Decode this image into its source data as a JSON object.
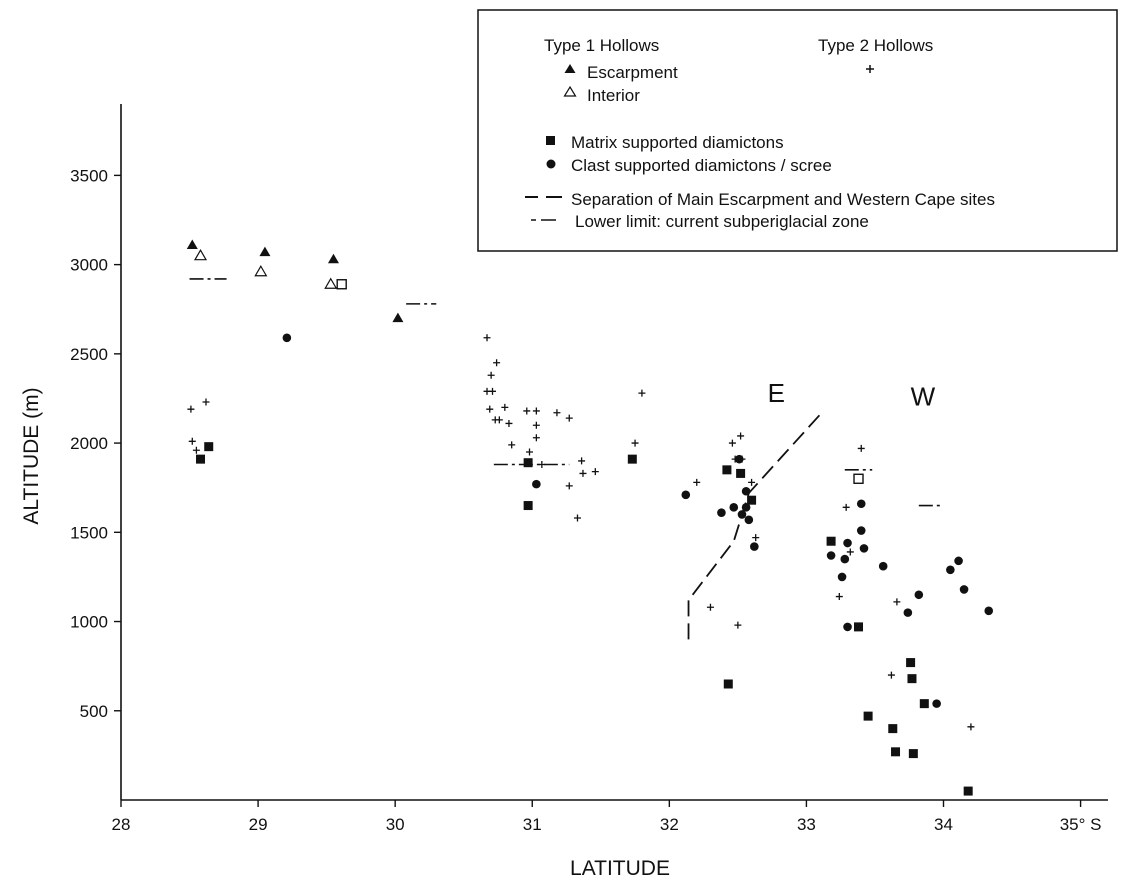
{
  "chart_data": {
    "type": "scatter",
    "title": "",
    "xlabel": "LATITUDE",
    "ylabel": "ALTITUDE (m)",
    "xlim": [
      28,
      35.2
    ],
    "ylim": [
      0,
      3900
    ],
    "x_tick_labels": [
      "28",
      "29",
      "30",
      "31",
      "32",
      "33",
      "34",
      "35° S"
    ],
    "x_tick_values": [
      28,
      29,
      30,
      31,
      32,
      33,
      34,
      35
    ],
    "y_tick_labels": [
      "500",
      "1000",
      "1500",
      "2000",
      "2500",
      "3000",
      "3500"
    ],
    "y_tick_values": [
      500,
      1000,
      1500,
      2000,
      2500,
      3000,
      3500
    ],
    "grid": false,
    "legend_placement": "top-right",
    "legend": {
      "type1_heading": "Type 1 Hollows",
      "type2_heading": "Type 2 Hollows",
      "escarpment": "Escarpment",
      "interior": "Interior",
      "matrix": "Matrix supported diamictons",
      "clast": "Clast supported diamictons / scree",
      "separation": "Separation of Main Escarpment and Western Cape sites",
      "lower_limit": "Lower limit: current subperiglacial zone"
    },
    "annotations": [
      {
        "text": "E",
        "x": 32.78,
        "y": 2230
      },
      {
        "text": "W",
        "x": 33.85,
        "y": 2210
      }
    ],
    "series": [
      {
        "name": "Escarpment",
        "marker": "filled-triangle",
        "points": [
          [
            28.52,
            3110
          ],
          [
            29.05,
            3070
          ],
          [
            29.55,
            3030
          ],
          [
            30.02,
            2700
          ]
        ]
      },
      {
        "name": "Interior",
        "marker": "open-triangle",
        "points": [
          [
            28.58,
            3050
          ],
          [
            29.02,
            2960
          ],
          [
            29.53,
            2890
          ]
        ]
      },
      {
        "name": "Matrix supported diamictons",
        "marker": "filled-square",
        "points": [
          [
            28.58,
            1910
          ],
          [
            28.64,
            1980
          ],
          [
            30.97,
            1890
          ],
          [
            30.97,
            1650
          ],
          [
            31.73,
            1910
          ],
          [
            32.42,
            1850
          ],
          [
            32.52,
            1830
          ],
          [
            32.6,
            1680
          ],
          [
            32.43,
            650
          ],
          [
            33.18,
            1450
          ],
          [
            33.38,
            970
          ],
          [
            33.45,
            470
          ],
          [
            33.63,
            400
          ],
          [
            33.65,
            270
          ],
          [
            33.76,
            770
          ],
          [
            33.77,
            680
          ],
          [
            33.78,
            260
          ],
          [
            33.86,
            540
          ],
          [
            34.18,
            50
          ]
        ]
      },
      {
        "name": "Matrix supported diamictons (open)",
        "marker": "open-square",
        "points": [
          [
            29.61,
            2890
          ],
          [
            33.38,
            1800
          ]
        ]
      },
      {
        "name": "Clast supported diamictons / scree",
        "marker": "filled-circle",
        "points": [
          [
            29.21,
            2590
          ],
          [
            31.03,
            1770
          ],
          [
            32.12,
            1710
          ],
          [
            32.38,
            1610
          ],
          [
            32.47,
            1640
          ],
          [
            32.51,
            1910
          ],
          [
            32.53,
            1600
          ],
          [
            32.56,
            1730
          ],
          [
            32.56,
            1640
          ],
          [
            32.58,
            1570
          ],
          [
            32.62,
            1420
          ],
          [
            33.18,
            1370
          ],
          [
            33.26,
            1250
          ],
          [
            33.28,
            1350
          ],
          [
            33.3,
            1440
          ],
          [
            33.3,
            970
          ],
          [
            33.4,
            1660
          ],
          [
            33.4,
            1510
          ],
          [
            33.42,
            1410
          ],
          [
            33.56,
            1310
          ],
          [
            33.74,
            1050
          ],
          [
            33.82,
            1150
          ],
          [
            33.95,
            540
          ],
          [
            34.05,
            1290
          ],
          [
            34.11,
            1340
          ],
          [
            34.15,
            1180
          ],
          [
            34.33,
            1060
          ]
        ]
      },
      {
        "name": "Type 2 Hollows",
        "marker": "plus",
        "points": [
          [
            28.51,
            2190
          ],
          [
            28.52,
            2010
          ],
          [
            28.55,
            1960
          ],
          [
            28.62,
            2230
          ],
          [
            30.67,
            2590
          ],
          [
            30.67,
            2290
          ],
          [
            30.69,
            2190
          ],
          [
            30.7,
            2380
          ],
          [
            30.71,
            2290
          ],
          [
            30.73,
            2130
          ],
          [
            30.74,
            2450
          ],
          [
            30.76,
            2130
          ],
          [
            30.8,
            2200
          ],
          [
            30.83,
            2110
          ],
          [
            30.85,
            1990
          ],
          [
            30.96,
            2180
          ],
          [
            30.98,
            1950
          ],
          [
            31.03,
            2180
          ],
          [
            31.03,
            2100
          ],
          [
            31.03,
            2030
          ],
          [
            31.07,
            1880
          ],
          [
            31.18,
            2170
          ],
          [
            31.27,
            2140
          ],
          [
            31.27,
            1760
          ],
          [
            31.33,
            1580
          ],
          [
            31.36,
            1900
          ],
          [
            31.37,
            1830
          ],
          [
            31.46,
            1840
          ],
          [
            31.75,
            2000
          ],
          [
            31.8,
            2280
          ],
          [
            32.2,
            1780
          ],
          [
            32.3,
            1080
          ],
          [
            32.46,
            2000
          ],
          [
            32.48,
            1910
          ],
          [
            32.5,
            980
          ],
          [
            32.52,
            2040
          ],
          [
            32.53,
            1910
          ],
          [
            32.6,
            1780
          ],
          [
            32.63,
            1470
          ],
          [
            33.24,
            1140
          ],
          [
            33.29,
            1640
          ],
          [
            33.32,
            1390
          ],
          [
            33.4,
            1970
          ],
          [
            33.62,
            700
          ],
          [
            33.66,
            1110
          ],
          [
            34.2,
            410
          ]
        ]
      }
    ],
    "lower_limit_segments": [
      {
        "x": [
          28.5,
          28.77
        ],
        "y": 2920
      },
      {
        "x": [
          30.08,
          30.3
        ],
        "y": 2780
      },
      {
        "x": [
          30.72,
          31.27
        ],
        "y": 1880
      },
      {
        "x": [
          33.28,
          33.48
        ],
        "y": 1850
      },
      {
        "x": [
          33.82,
          34.0
        ],
        "y": 1650
      }
    ],
    "separation_line": [
      [
        32.14,
        900
      ],
      [
        32.14,
        1120
      ],
      [
        32.47,
        1450
      ],
      [
        32.58,
        1720
      ],
      [
        33.1,
        2160
      ]
    ]
  }
}
